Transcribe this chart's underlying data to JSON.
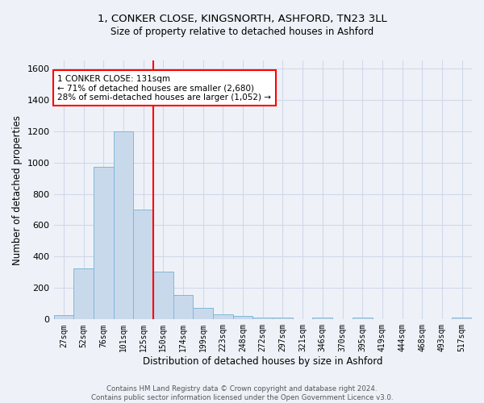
{
  "title_line1": "1, CONKER CLOSE, KINGSNORTH, ASHFORD, TN23 3LL",
  "title_line2": "Size of property relative to detached houses in Ashford",
  "xlabel": "Distribution of detached houses by size in Ashford",
  "ylabel": "Number of detached properties",
  "bar_labels": [
    "27sqm",
    "52sqm",
    "76sqm",
    "101sqm",
    "125sqm",
    "150sqm",
    "174sqm",
    "199sqm",
    "223sqm",
    "248sqm",
    "272sqm",
    "297sqm",
    "321sqm",
    "346sqm",
    "370sqm",
    "395sqm",
    "419sqm",
    "444sqm",
    "468sqm",
    "493sqm",
    "517sqm"
  ],
  "bar_values": [
    25,
    325,
    970,
    1200,
    700,
    305,
    155,
    75,
    30,
    20,
    10,
    10,
    0,
    10,
    0,
    12,
    0,
    0,
    0,
    0,
    12
  ],
  "bar_color": "#c9d9ec",
  "bar_edgecolor": "#7fb8d8",
  "vline_x": 4.5,
  "vline_color": "red",
  "annotation_title": "1 CONKER CLOSE: 131sqm",
  "annotation_line1": "← 71% of detached houses are smaller (2,680)",
  "annotation_line2": "28% of semi-detached houses are larger (1,052) →",
  "annotation_box_color": "white",
  "annotation_box_edgecolor": "red",
  "ylim": [
    0,
    1650
  ],
  "yticks": [
    0,
    200,
    400,
    600,
    800,
    1000,
    1200,
    1400,
    1600
  ],
  "grid_color": "#d0d8e8",
  "background_color": "#eef2f8",
  "footer_line1": "Contains HM Land Registry data © Crown copyright and database right 2024.",
  "footer_line2": "Contains public sector information licensed under the Open Government Licence v3.0."
}
